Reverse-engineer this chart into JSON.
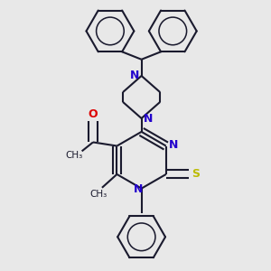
{
  "bg_color": "#e8e8e8",
  "bond_color": "#1a1a2e",
  "bond_width": 1.5,
  "N_color": "#2200cc",
  "O_color": "#dd0000",
  "S_color": "#bbbb00",
  "font_size": 9,
  "xlim": [
    -1.55,
    1.55
  ],
  "ylim": [
    -1.75,
    1.85
  ]
}
